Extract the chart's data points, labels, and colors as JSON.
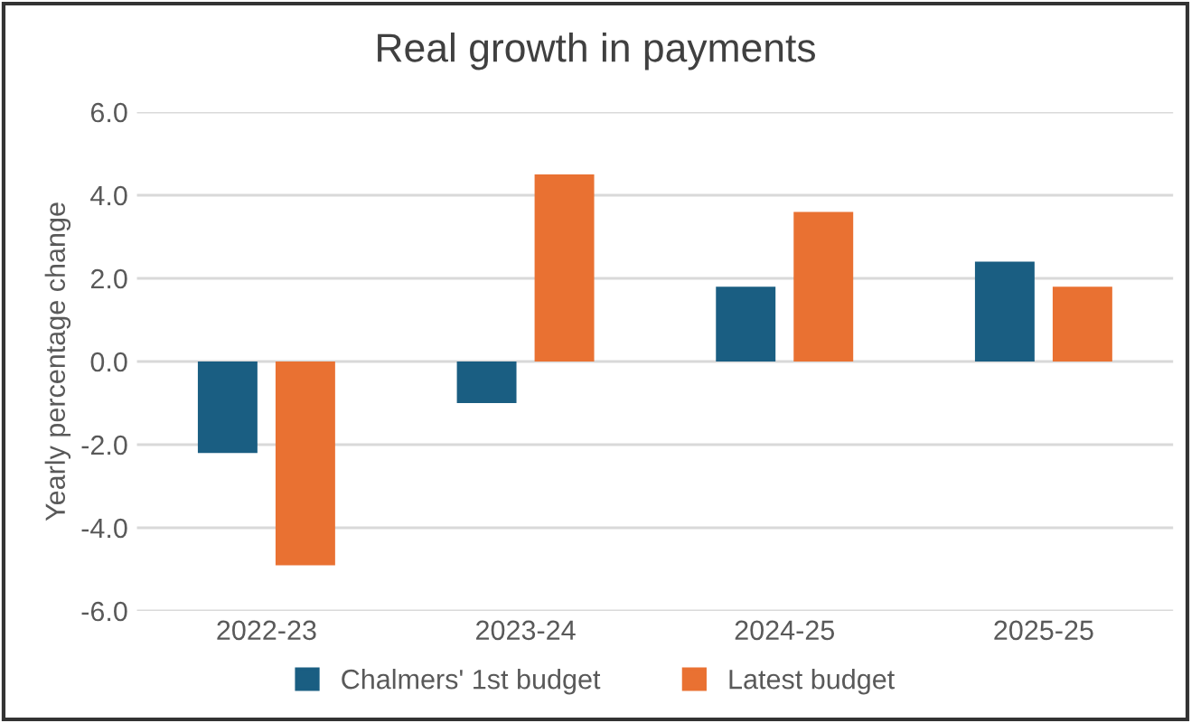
{
  "chart_data": {
    "type": "bar",
    "title": "Real growth in payments",
    "ylabel": "Yearly percentage change",
    "categories": [
      "2022-23",
      "2023-24",
      "2024-25",
      "2025-25"
    ],
    "series": [
      {
        "name": "Chalmers' 1st budget",
        "color": "#1a5e82",
        "values": [
          -2.2,
          -1.0,
          1.8,
          2.4
        ]
      },
      {
        "name": "Latest budget",
        "color": "#e97132",
        "values": [
          -4.9,
          4.5,
          3.6,
          1.8
        ]
      }
    ],
    "ylim": [
      -6,
      6
    ],
    "yticks": [
      {
        "value": -6,
        "label": "-6.0"
      },
      {
        "value": -4,
        "label": "-4.0"
      },
      {
        "value": -2,
        "label": "-2.0"
      },
      {
        "value": 0,
        "label": "0.0"
      },
      {
        "value": 2,
        "label": "2.0"
      },
      {
        "value": 4,
        "label": "4.0"
      },
      {
        "value": 6,
        "label": "6.0"
      }
    ],
    "grid": "y",
    "legend": "bottom"
  }
}
